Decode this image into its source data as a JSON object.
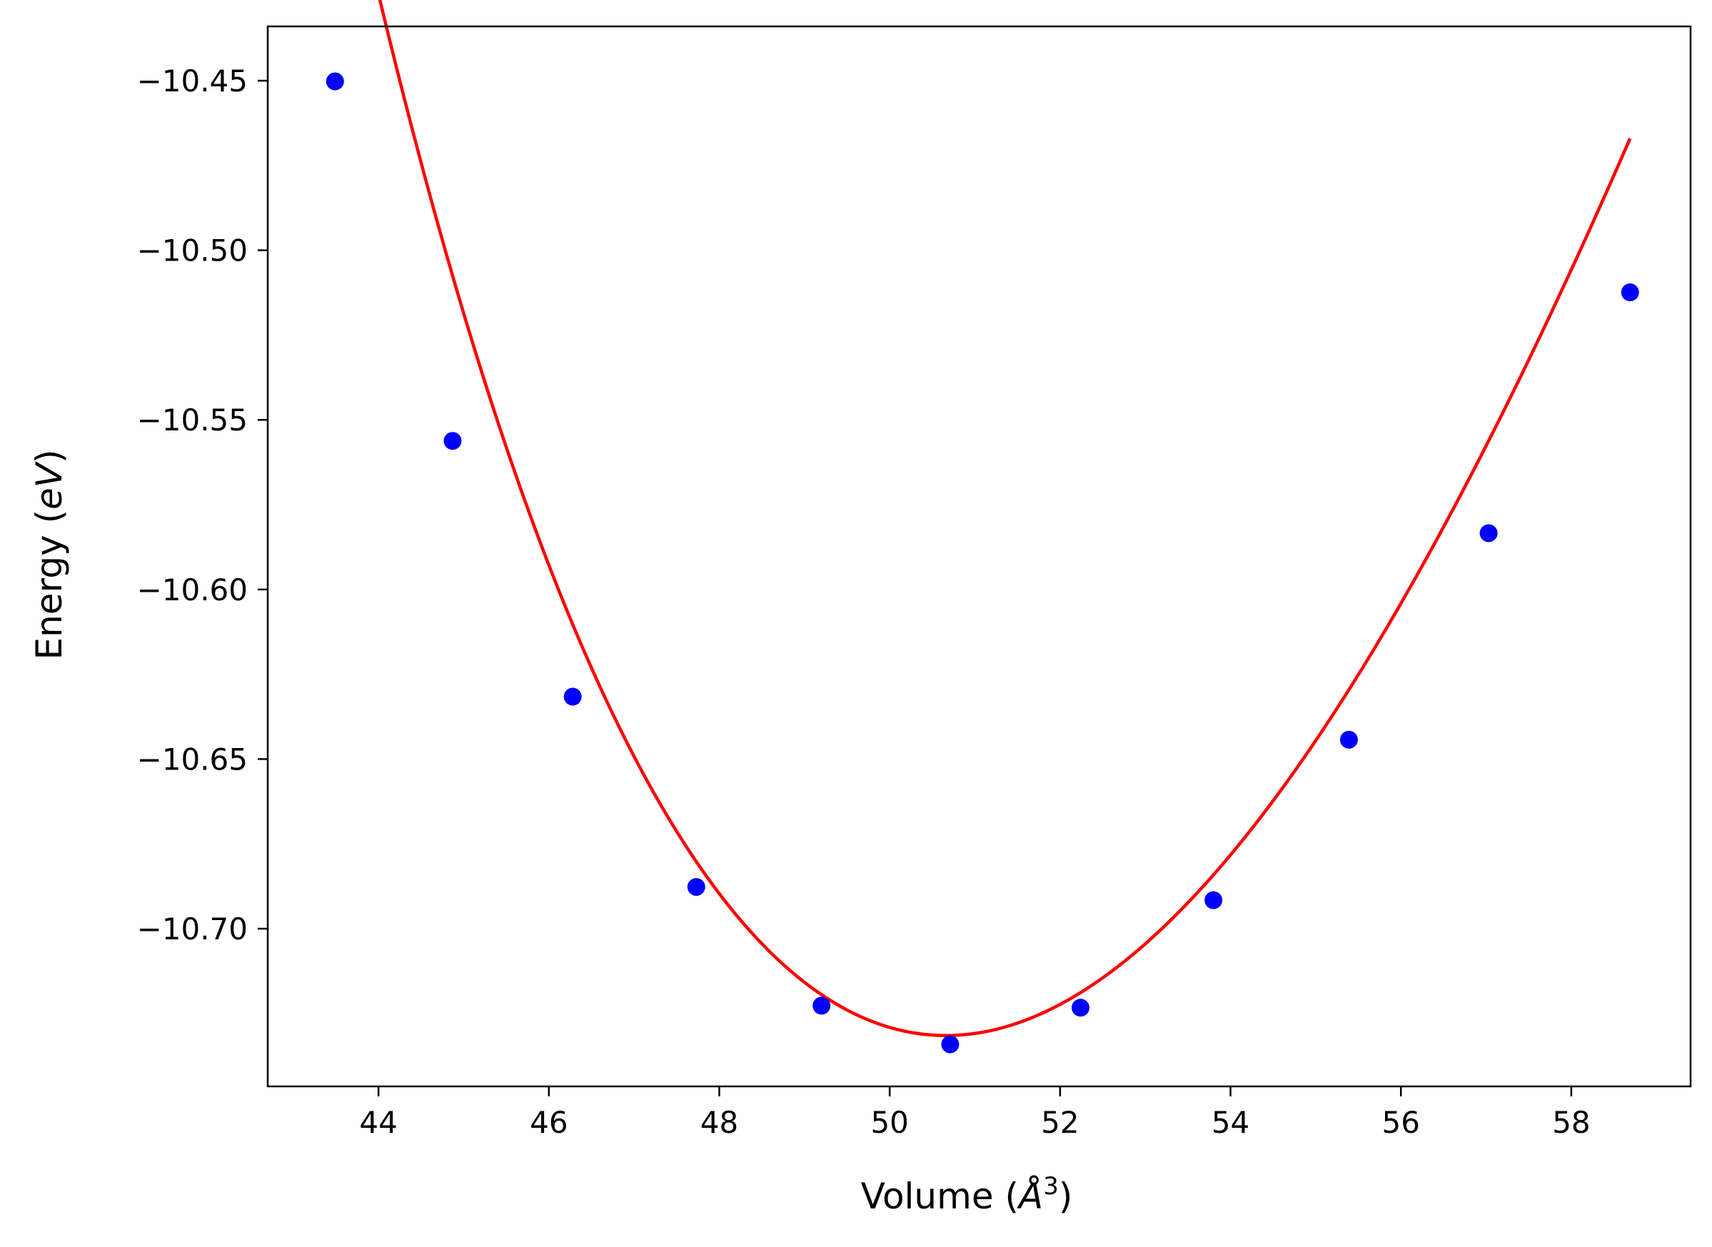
{
  "chart_data": {
    "type": "scatter",
    "xlabel": {
      "prefix": "Volume (",
      "symbol": "Å",
      "exponent": "3",
      "suffix": ")"
    },
    "ylabel": {
      "prefix": "Energy (",
      "symbol": "eV",
      "suffix": ")"
    },
    "xlim": [
      42.7,
      59.4
    ],
    "ylim": [
      -10.7465,
      -10.434
    ],
    "x_ticks": [
      44,
      46,
      48,
      50,
      52,
      54,
      56,
      58
    ],
    "x_tick_labels": [
      "44",
      "46",
      "48",
      "50",
      "52",
      "54",
      "56",
      "58"
    ],
    "y_ticks": [
      -10.45,
      -10.5,
      -10.55,
      -10.6,
      -10.65,
      -10.7
    ],
    "y_tick_labels": [
      "−10.45",
      "−10.50",
      "−10.55",
      "−10.60",
      "−10.65",
      "−10.70"
    ],
    "grid": false,
    "series": [
      {
        "kind": "points",
        "color": "#0000ff",
        "x": [
          43.49,
          44.87,
          46.28,
          47.73,
          49.2,
          50.71,
          52.24,
          53.8,
          55.39,
          57.03,
          58.69
        ],
        "y": [
          -10.4502,
          -10.5562,
          -10.6316,
          -10.6877,
          -10.7227,
          -10.7341,
          -10.7233,
          -10.6916,
          -10.6443,
          -10.5834,
          -10.5124
        ]
      },
      {
        "kind": "fit-curve",
        "color": "#ff0000",
        "model": "birch-murnaghan",
        "params": {
          "E0": -10.7315,
          "V0": 50.66,
          "B0": 0.543,
          "B0p": 4.45
        },
        "x_range": [
          43.49,
          58.69
        ]
      }
    ]
  }
}
